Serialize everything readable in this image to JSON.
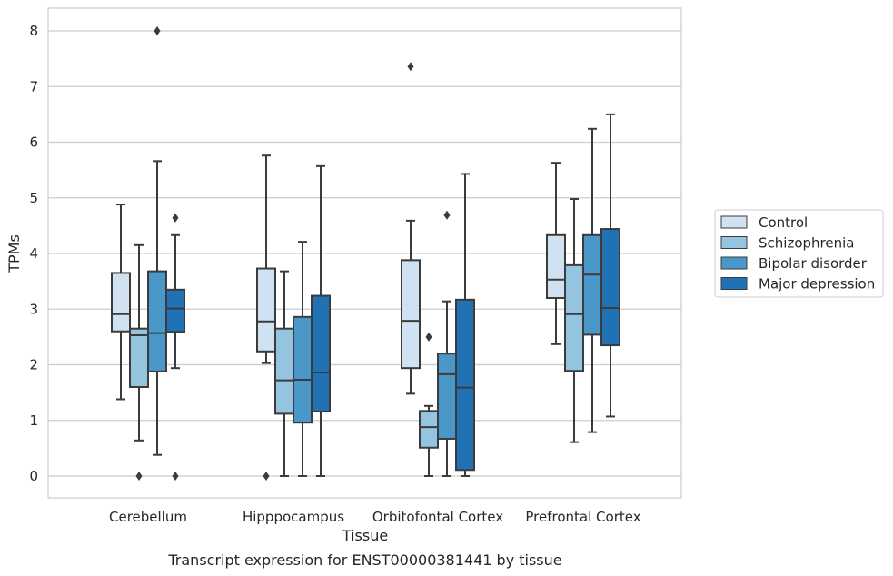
{
  "caption": "Transcript expression for ENST00000381441 by tissue",
  "chart_data": {
    "type": "box",
    "title": "",
    "xlabel": "Tissue",
    "ylabel": "TPMs",
    "ylim": [
      -0.4,
      8.4
    ],
    "yticks": [
      0,
      1,
      2,
      3,
      4,
      5,
      6,
      7,
      8
    ],
    "grid": "horizontal",
    "legend_position": "right",
    "categories": [
      "Cerebellum",
      "Hipppocampus",
      "Orbitofontal Cortex",
      "Prefrontal Cortex"
    ],
    "series": [
      {
        "name": "Control",
        "color": "#d0e1f2",
        "boxes": [
          {
            "whisker_low": 1.38,
            "q1": 2.6,
            "median": 2.91,
            "q3": 3.65,
            "whisker_high": 4.88,
            "outliers": []
          },
          {
            "whisker_low": 2.03,
            "q1": 2.24,
            "median": 2.78,
            "q3": 3.73,
            "whisker_high": 5.76,
            "outliers": [
              0
            ]
          },
          {
            "whisker_low": 1.48,
            "q1": 1.94,
            "median": 2.79,
            "q3": 3.88,
            "whisker_high": 4.59,
            "outliers": [
              7.36
            ]
          },
          {
            "whisker_low": 2.37,
            "q1": 3.2,
            "median": 3.53,
            "q3": 4.33,
            "whisker_high": 5.63,
            "outliers": []
          }
        ]
      },
      {
        "name": "Schizophrenia",
        "color": "#94c4df",
        "boxes": [
          {
            "whisker_low": 0.64,
            "q1": 1.6,
            "median": 2.53,
            "q3": 2.65,
            "whisker_high": 4.15,
            "outliers": [
              0
            ]
          },
          {
            "whisker_low": 0,
            "q1": 1.12,
            "median": 1.72,
            "q3": 2.65,
            "whisker_high": 3.68,
            "outliers": []
          },
          {
            "whisker_low": 0,
            "q1": 0.51,
            "median": 0.88,
            "q3": 1.17,
            "whisker_high": 1.26,
            "outliers": [
              2.5
            ]
          },
          {
            "whisker_low": 0.61,
            "q1": 1.89,
            "median": 2.91,
            "q3": 3.79,
            "whisker_high": 4.98,
            "outliers": []
          }
        ]
      },
      {
        "name": "Bipolar disorder",
        "color": "#4a98c9",
        "boxes": [
          {
            "whisker_low": 0.38,
            "q1": 1.88,
            "median": 2.57,
            "q3": 3.68,
            "whisker_high": 5.66,
            "outliers": [
              8.0
            ]
          },
          {
            "whisker_low": 0,
            "q1": 0.96,
            "median": 1.73,
            "q3": 2.86,
            "whisker_high": 4.21,
            "outliers": []
          },
          {
            "whisker_low": 0,
            "q1": 0.67,
            "median": 1.83,
            "q3": 2.2,
            "whisker_high": 3.14,
            "outliers": [
              4.69
            ]
          },
          {
            "whisker_low": 0.79,
            "q1": 2.54,
            "median": 3.62,
            "q3": 4.33,
            "whisker_high": 6.24,
            "outliers": []
          }
        ]
      },
      {
        "name": "Major depression",
        "color": "#2171b5",
        "boxes": [
          {
            "whisker_low": 1.94,
            "q1": 2.59,
            "median": 3.01,
            "q3": 3.35,
            "whisker_high": 4.33,
            "outliers": [
              4.64,
              0
            ]
          },
          {
            "whisker_low": 0,
            "q1": 1.16,
            "median": 1.86,
            "q3": 3.24,
            "whisker_high": 5.57,
            "outliers": []
          },
          {
            "whisker_low": 0,
            "q1": 0.11,
            "median": 1.59,
            "q3": 3.17,
            "whisker_high": 5.43,
            "outliers": []
          },
          {
            "whisker_low": 1.07,
            "q1": 2.35,
            "median": 3.02,
            "q3": 4.44,
            "whisker_high": 6.5,
            "outliers": []
          }
        ]
      }
    ]
  }
}
